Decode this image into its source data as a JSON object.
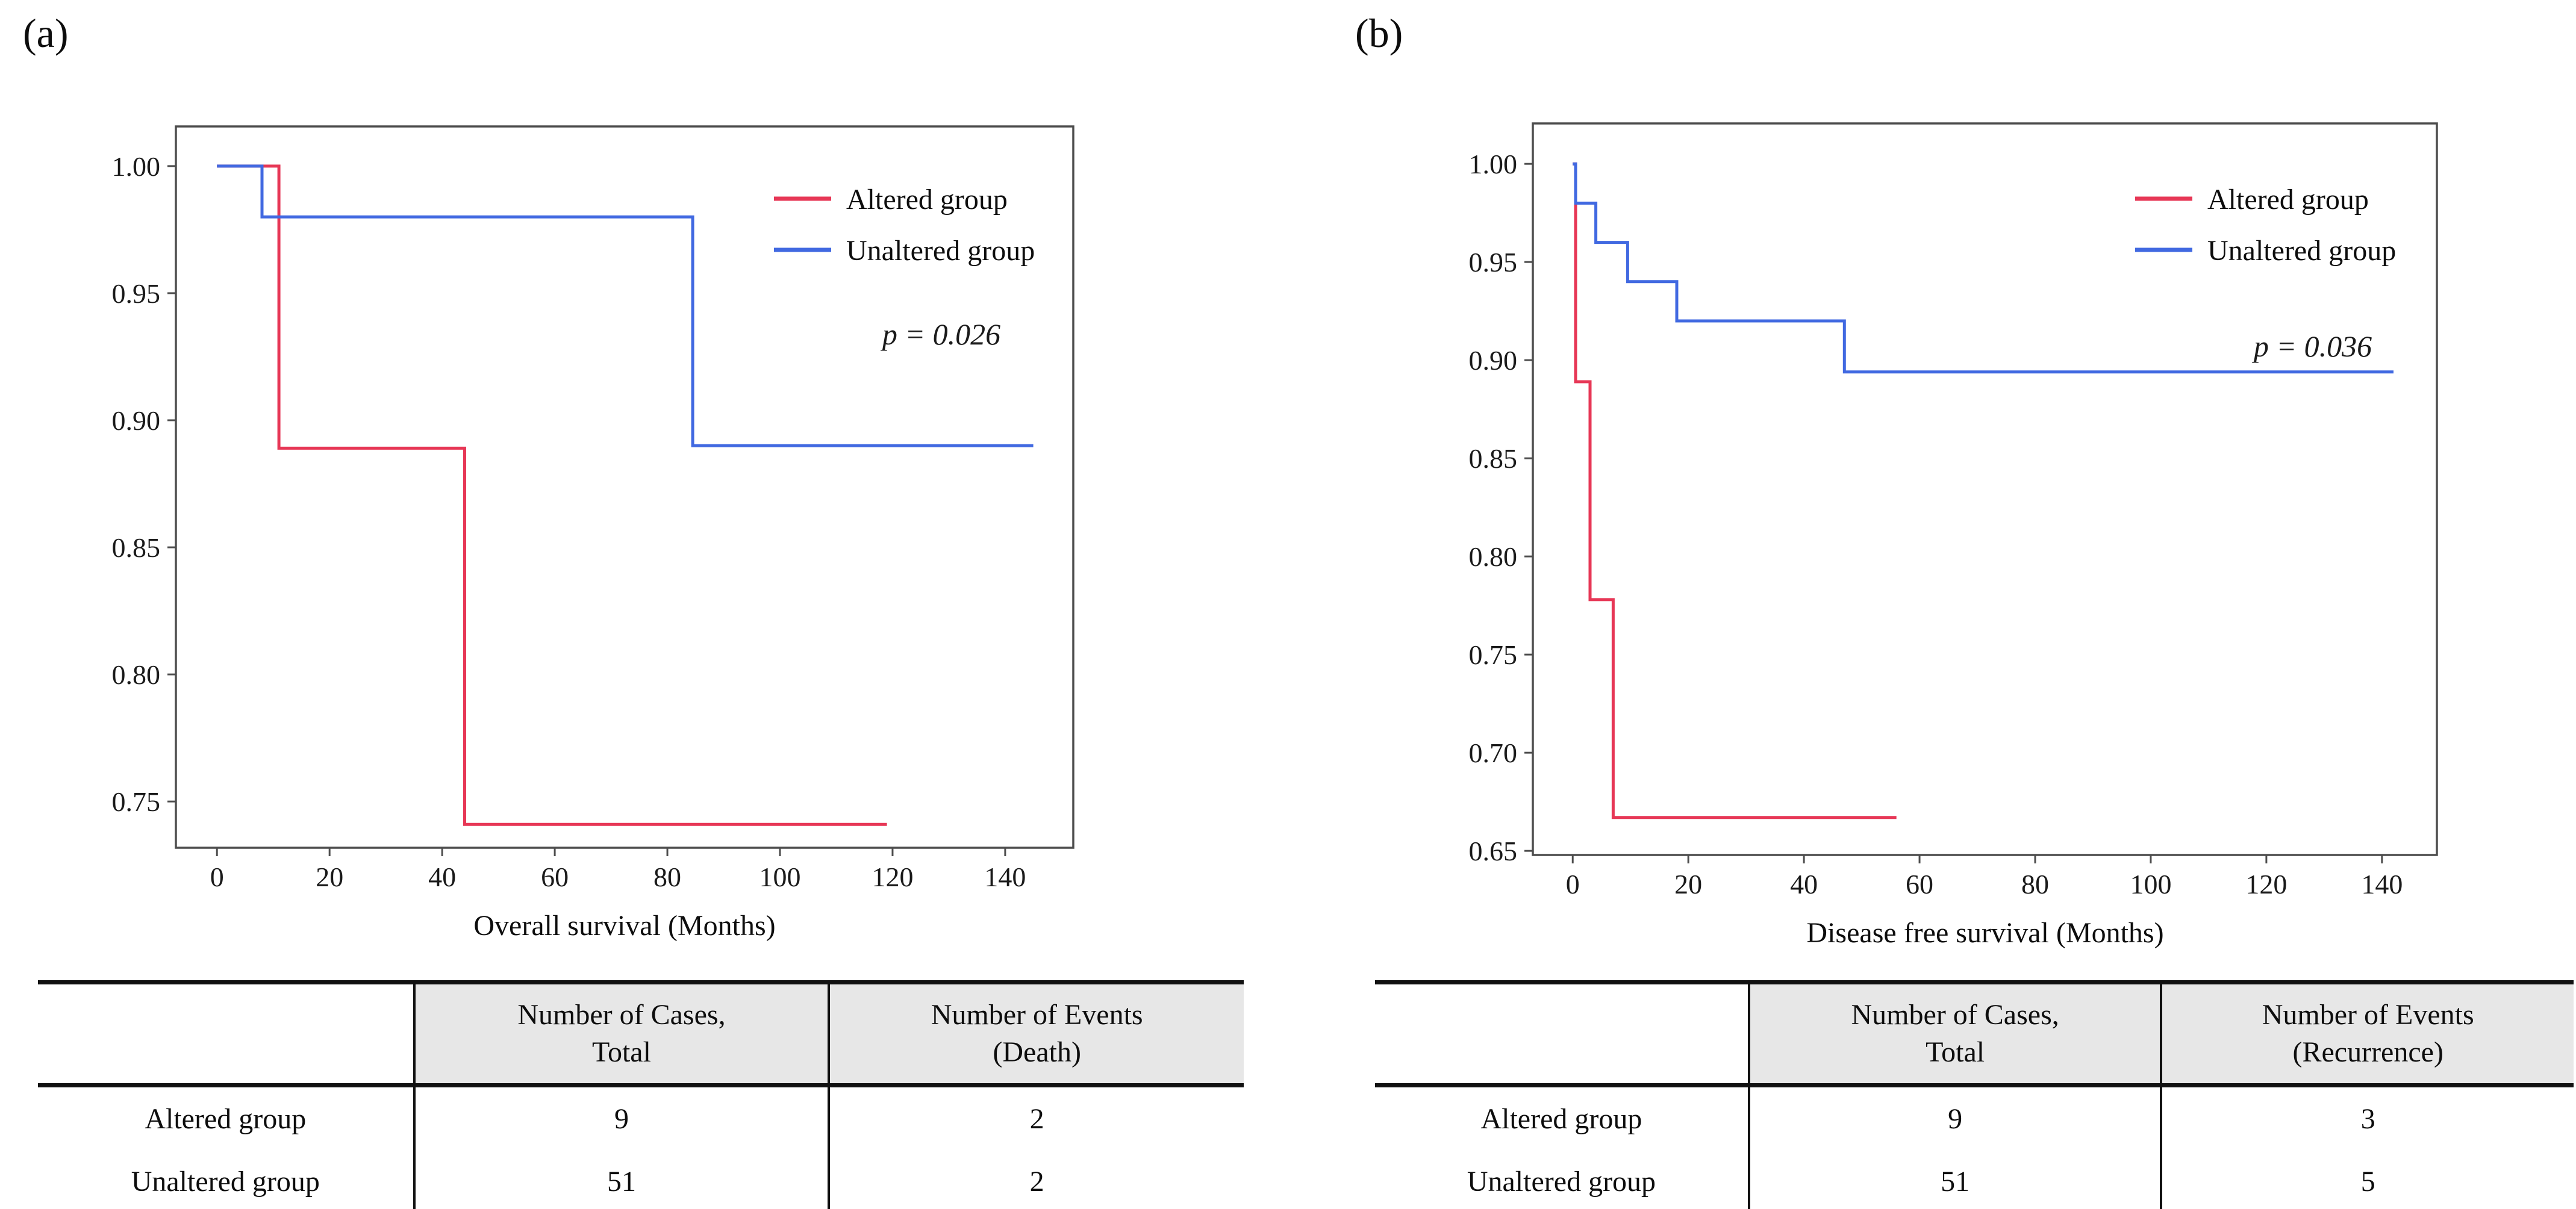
{
  "figure": {
    "panel_a_label": "(a)",
    "panel_b_label": "(b)"
  },
  "colors": {
    "altered_red": "#e73756",
    "unaltered_blue": "#4169e1",
    "axis_gray": "#4d4d4d",
    "table_header_gray": "#e7e7e7"
  },
  "chart_data": [
    {
      "id": "a",
      "type": "line",
      "subtype": "kaplan-meier-step",
      "panel_label": "(a)",
      "title": "",
      "xlabel": "Overall survival (Months)",
      "ylabel": "",
      "x_ticks": [
        0,
        20,
        40,
        60,
        80,
        100,
        120,
        140
      ],
      "y_tick_labels": [
        "1.00",
        "0.95",
        "0.90",
        "0.85",
        "0.80",
        "0.75"
      ],
      "xlim": [
        -7.3,
        152.1
      ],
      "ylim": [
        0.7318,
        1.0156
      ],
      "grid": false,
      "legend_position": "upper right inside",
      "p_label": "p = 0.026",
      "legend": [
        {
          "label": "Altered group",
          "color": "#e73756"
        },
        {
          "label": "Unaltered group",
          "color": "#4169e1"
        }
      ],
      "series": [
        {
          "name": "Altered group",
          "color": "#e73756",
          "points": [
            [
              0,
              1.0
            ],
            [
              11,
              1.0
            ],
            [
              11,
              0.889
            ],
            [
              44,
              0.889
            ],
            [
              44,
              0.741
            ],
            [
              119,
              0.741
            ]
          ]
        },
        {
          "name": "Unaltered group",
          "color": "#4169e1",
          "points": [
            [
              0,
              1.0
            ],
            [
              8,
              1.0
            ],
            [
              8,
              0.98
            ],
            [
              84.5,
              0.98
            ],
            [
              84.5,
              0.89
            ],
            [
              145,
              0.89
            ]
          ]
        }
      ]
    },
    {
      "id": "b",
      "type": "line",
      "subtype": "kaplan-meier-step",
      "panel_label": "(b)",
      "title": "",
      "xlabel": "Disease free survival (Months)",
      "ylabel": "",
      "x_ticks": [
        0,
        20,
        40,
        60,
        80,
        100,
        120,
        140
      ],
      "y_tick_labels": [
        "1.00",
        "0.95",
        "0.90",
        "0.85",
        "0.80",
        "0.75",
        "0.70",
        "0.65"
      ],
      "xlim": [
        -6.9,
        149.5
      ],
      "ylim": [
        0.6479,
        1.0206
      ],
      "grid": false,
      "legend_position": "upper right inside",
      "p_label": "p = 0.036",
      "legend": [
        {
          "label": "Altered group",
          "color": "#e73756"
        },
        {
          "label": "Unaltered group",
          "color": "#4169e1"
        }
      ],
      "series": [
        {
          "name": "Altered group",
          "color": "#e73756",
          "points": [
            [
              0,
              1.0
            ],
            [
              0.5,
              1.0
            ],
            [
              0.5,
              0.889
            ],
            [
              3,
              0.889
            ],
            [
              3,
              0.778
            ],
            [
              7,
              0.778
            ],
            [
              7,
              0.667
            ],
            [
              56,
              0.667
            ]
          ]
        },
        {
          "name": "Unaltered group",
          "color": "#4169e1",
          "points": [
            [
              0,
              1.0
            ],
            [
              0.5,
              1.0
            ],
            [
              0.5,
              0.98
            ],
            [
              4,
              0.98
            ],
            [
              4,
              0.96
            ],
            [
              9.5,
              0.96
            ],
            [
              9.5,
              0.94
            ],
            [
              18,
              0.94
            ],
            [
              18,
              0.92
            ],
            [
              47,
              0.92
            ],
            [
              47,
              0.894
            ],
            [
              142,
              0.894
            ]
          ]
        }
      ]
    }
  ],
  "tables": {
    "a": {
      "corner": "",
      "col_headers": [
        [
          "Number of Cases,",
          "Total"
        ],
        [
          "Number of Events",
          "(Death)"
        ]
      ],
      "rows": [
        {
          "label": "Altered group",
          "cases": "9",
          "events": "2"
        },
        {
          "label": "Unaltered group",
          "cases": "51",
          "events": "2"
        }
      ]
    },
    "b": {
      "corner": "",
      "col_headers": [
        [
          "Number of Cases,",
          "Total"
        ],
        [
          "Number of Events",
          "(Recurrence)"
        ]
      ],
      "rows": [
        {
          "label": "Altered group",
          "cases": "9",
          "events": "3"
        },
        {
          "label": "Unaltered group",
          "cases": "51",
          "events": "5"
        }
      ]
    }
  }
}
